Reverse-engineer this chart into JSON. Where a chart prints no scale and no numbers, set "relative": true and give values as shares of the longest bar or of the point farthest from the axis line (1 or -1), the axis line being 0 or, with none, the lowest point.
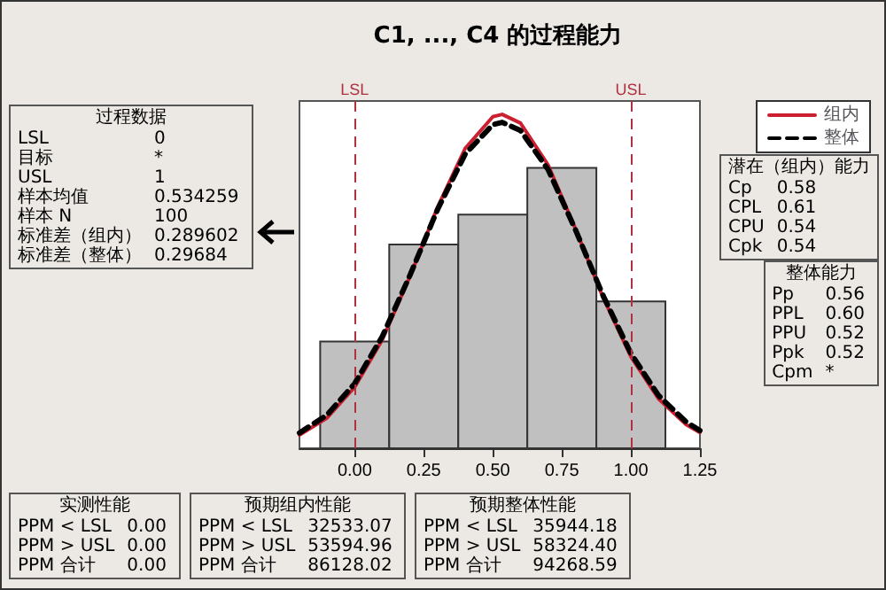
{
  "chart_data": [
    {
      "type": "histogram",
      "title": "C1, ..., C4 的过程能力",
      "relative": true,
      "bins": [
        -0.125,
        0.125,
        0.375,
        0.625,
        0.875,
        1.125
      ],
      "values": [
        0.32,
        0.61,
        0.7,
        0.84,
        0.44
      ],
      "color": "#c0c0c0",
      "xlim": [
        -0.2,
        1.25
      ],
      "xticks": [
        {
          "value": 0,
          "label": "0.00"
        },
        {
          "value": 0.25,
          "label": "0.25"
        },
        {
          "value": 0.5,
          "label": "0.50"
        },
        {
          "value": 0.75,
          "label": "0.75"
        },
        {
          "value": 1,
          "label": "1.00"
        },
        {
          "value": 1.25,
          "label": "1.25"
        }
      ],
      "series": [
        {
          "type": "line",
          "name": "组内",
          "color": "#cc1f2f",
          "line_style": "solid",
          "x": [
            -0.2,
            -0.1,
            0,
            0.1,
            0.2,
            0.3,
            0.4,
            0.5,
            0.534,
            0.6,
            0.7,
            0.8,
            0.9,
            1,
            1.1,
            1.2,
            1.25
          ],
          "values": [
            0.04,
            0.091,
            0.183,
            0.325,
            0.514,
            0.722,
            0.898,
            0.993,
            1,
            0.974,
            0.849,
            0.656,
            0.45,
            0.274,
            0.148,
            0.071,
            0.047
          ]
        },
        {
          "type": "line",
          "name": "整体",
          "color": "#000000",
          "line_style": "dashed",
          "x": [
            -0.2,
            -0.1,
            0,
            0.1,
            0.2,
            0.3,
            0.4,
            0.5,
            0.534,
            0.6,
            0.7,
            0.8,
            0.9,
            1,
            1.1,
            1.2,
            1.25
          ],
          "values": [
            0.046,
            0.1,
            0.194,
            0.335,
            0.518,
            0.715,
            0.881,
            0.969,
            0.976,
            0.952,
            0.835,
            0.653,
            0.456,
            0.284,
            0.158,
            0.079,
            0.053
          ]
        }
      ],
      "ref_lines": [
        {
          "axis": "x",
          "value": 0,
          "label": "LSL",
          "color": "#b03040",
          "line_style": "dashed"
        },
        {
          "axis": "x",
          "value": 1,
          "label": "USL",
          "color": "#b03040",
          "line_style": "dashed"
        }
      ],
      "legend": "right",
      "grid": false,
      "marker": "none"
    },
    {
      "type": "other",
      "title": "过程数据",
      "annotations": [
        "LSL",
        "0",
        "目标",
        "*",
        "USL",
        "1",
        "样本均值",
        "0.534259",
        "样本 N",
        "100",
        "标准差（组内）",
        "0.289602",
        "标准差（整体）",
        "0.29684"
      ]
    },
    {
      "type": "other",
      "title": "潜在（组内）能力",
      "annotations": [
        "Cp",
        "0.58",
        "CPL",
        "0.61",
        "CPU",
        "0.54",
        "Cpk",
        "0.54"
      ]
    },
    {
      "type": "other",
      "title": "整体能力",
      "annotations": [
        "Pp",
        "0.56",
        "PPL",
        "0.60",
        "PPU",
        "0.52",
        "Ppk",
        "0.52",
        "Cpm",
        "*"
      ]
    },
    {
      "type": "other",
      "title": "实测性能",
      "annotations": [
        "PPM < LSL",
        "0.00",
        "PPM > USL",
        "0.00",
        "PPM 合计",
        "0.00"
      ]
    },
    {
      "type": "other",
      "title": "预期组内性能",
      "annotations": [
        "PPM < LSL",
        "32533.07",
        "PPM > USL",
        "53594.96",
        "PPM 合计",
        "86128.02"
      ]
    },
    {
      "type": "other",
      "title": "预期整体性能",
      "annotations": [
        "PPM < LSL",
        "35944.18",
        "PPM > USL",
        "58324.40",
        "PPM 合计",
        "94268.59"
      ]
    }
  ]
}
